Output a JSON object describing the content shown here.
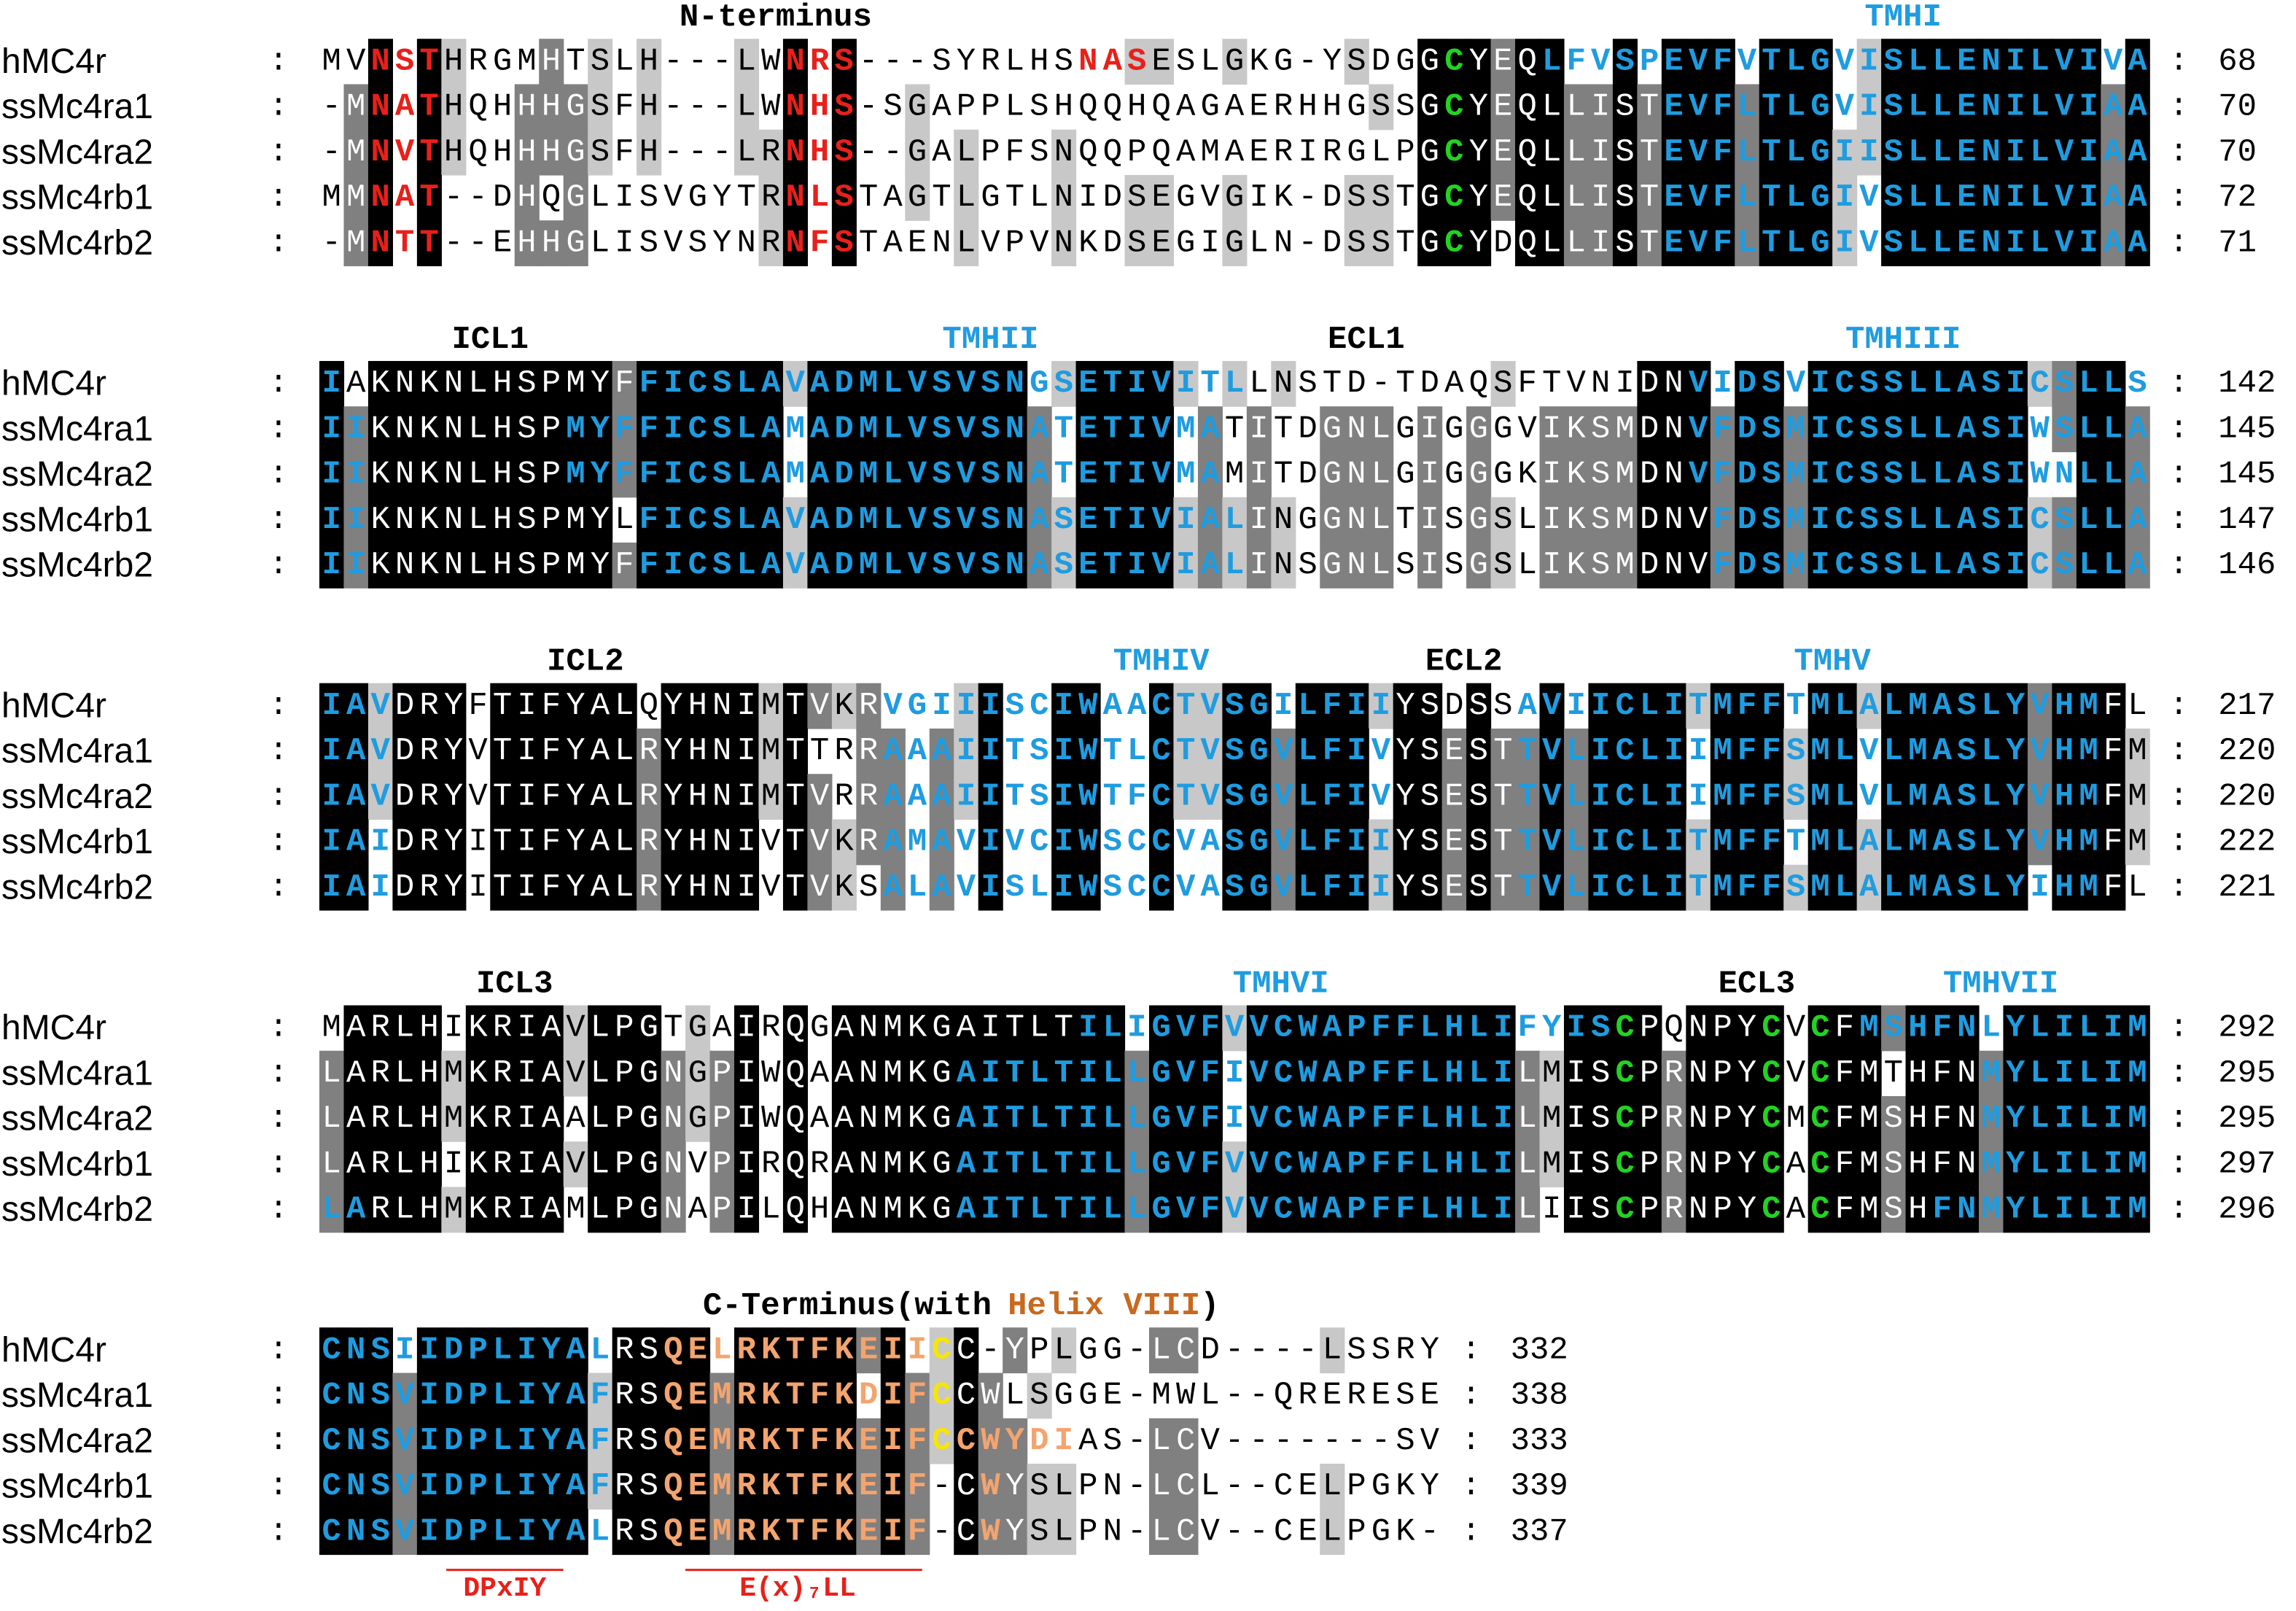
{
  "blocks": [
    {
      "headers": [
        {
          "text": "N-terminus"
        },
        {
          "text": "TMHI",
          "color": "#1f9ce0"
        }
      ],
      "rows": [
        {
          "name": "hMC4r",
          "separator": ":",
          "count": 68,
          "segments": [
            {
              "text": "MV"
            },
            {
              "text": "NST",
              "color": "#e8201a"
            },
            {
              "text": "HRGMHTSLH---LW"
            },
            {
              "text": "NRS",
              "color": "#e8201a"
            },
            {
              "text": "---SYRLHS"
            },
            {
              "text": "NAS",
              "color": "#e8201a"
            },
            {
              "text": "ESLGKG-YSDGG"
            },
            {
              "text": "C",
              "color": "#22d322"
            },
            {
              "text": "YEQ"
            },
            {
              "text": "LFVSPEVFVTLGVISLLENILVIVA",
              "color": "#1f9ce0"
            }
          ]
        },
        {
          "name": "ssMc4ra1",
          "separator": ":",
          "count": 70,
          "segments": [
            {
              "text": "-M"
            },
            {
              "text": "NAT",
              "color": "#e8201a"
            },
            {
              "text": "HQHHHGSFH---LW"
            },
            {
              "text": "NHS",
              "color": "#e8201a"
            },
            {
              "text": "-SGAPPLSHQQHQAGAERHHGSSG"
            },
            {
              "text": "C",
              "color": "#22d322"
            },
            {
              "text": "YEQLLIST"
            },
            {
              "text": "EVFLTLGVISLLENILVIAA",
              "color": "#1f9ce0"
            }
          ]
        },
        {
          "name": "ssMc4ra2",
          "separator": ":",
          "count": 70,
          "segments": [
            {
              "text": "-M"
            },
            {
              "text": "NVT",
              "color": "#e8201a"
            },
            {
              "text": "HQHHHGSFH---LR"
            },
            {
              "text": "NHS",
              "color": "#e8201a"
            },
            {
              "text": "--GALPFSNQQPQAMAERIRGLPG"
            },
            {
              "text": "C",
              "color": "#22d322"
            },
            {
              "text": "YEQLLIST"
            },
            {
              "text": "EVFLTLGIISLLENILVIAA",
              "color": "#1f9ce0"
            }
          ]
        },
        {
          "name": "ssMc4rb1",
          "separator": ":",
          "count": 72,
          "segments": [
            {
              "text": "MM"
            },
            {
              "text": "NAT",
              "color": "#e8201a"
            },
            {
              "text": "--DHQGLISVGYTR"
            },
            {
              "text": "NLS",
              "color": "#e8201a"
            },
            {
              "text": "TAGTLGTLNIDSEGVGIK-DSSTG"
            },
            {
              "text": "C",
              "color": "#22d322"
            },
            {
              "text": "YEQLLIST"
            },
            {
              "text": "EVFLTLGIVSLLENILVIAA",
              "color": "#1f9ce0"
            }
          ]
        },
        {
          "name": "ssMc4rb2",
          "separator": ":",
          "count": 71,
          "segments": [
            {
              "text": "-M"
            },
            {
              "text": "NTT",
              "color": "#e8201a"
            },
            {
              "text": "--EHHGLISVSYNR"
            },
            {
              "text": "NFS",
              "color": "#e8201a"
            },
            {
              "text": "TAENLVPVNKDSEGIGLN-DSSTG"
            },
            {
              "text": "C",
              "color": "#22d322"
            },
            {
              "text": "YDQLLIST"
            },
            {
              "text": "EVFLTLGIVSLLENILVIAA",
              "color": "#1f9ce0"
            }
          ]
        }
      ]
    },
    {
      "headers": [
        {
          "text": "ICL1"
        },
        {
          "text": "TMHII",
          "color": "#1f9ce0"
        },
        {
          "text": "ECL1"
        },
        {
          "text": "TMHIII",
          "color": "#1f9ce0"
        }
      ],
      "rows": [
        {
          "name": "hMC4r",
          "separator": ":",
          "count": 142,
          "segments": [
            {
              "text": "I",
              "color": "#1f9ce0"
            },
            {
              "text": "AKNKNLHSPMYF"
            },
            {
              "text": "FICSLAVADMLVSVSNGSETIVITL",
              "color": "#1f9ce0"
            },
            {
              "text": "LNSTD-TDAQSFTVNIDN"
            },
            {
              "text": "VIDSVICSSLLASICSLLS",
              "color": "#1f9ce0"
            }
          ]
        },
        {
          "name": "ssMc4ra1",
          "separator": ":",
          "count": 145,
          "segments": [
            {
              "text": "II",
              "color": "#1f9ce0"
            },
            {
              "text": "KNKNLHSP"
            },
            {
              "text": "MYFFICSLAMADMLVSVSNATETIVMA",
              "color": "#1f9ce0"
            },
            {
              "text": "TITDGNLGIGGGVIKSMDN"
            },
            {
              "text": "VFDSMICSSLLASIWSLLA",
              "color": "#1f9ce0"
            }
          ]
        },
        {
          "name": "ssMc4ra2",
          "separator": ":",
          "count": 145,
          "segments": [
            {
              "text": "II",
              "color": "#1f9ce0"
            },
            {
              "text": "KNKNLHSP"
            },
            {
              "text": "MYFFICSLAMADMLVSVSNATETIVMA",
              "color": "#1f9ce0"
            },
            {
              "text": "MITDGNLGIGGGKIKSMDN"
            },
            {
              "text": "VFDSMICSSLLASIWNLLA",
              "color": "#1f9ce0"
            }
          ]
        },
        {
          "name": "ssMc4rb1",
          "separator": ":",
          "count": 147,
          "segments": [
            {
              "text": "II",
              "color": "#1f9ce0"
            },
            {
              "text": "KNKNLHSPMYL"
            },
            {
              "text": "FICSLAVADMLVSVSNASETIVIAL",
              "color": "#1f9ce0"
            },
            {
              "text": "INGGNLTISGSLIKSMDNV"
            },
            {
              "text": "FDSMICSSLLASICSLLA",
              "color": "#1f9ce0"
            }
          ]
        },
        {
          "name": "ssMc4rb2",
          "separator": ":",
          "count": 146,
          "segments": [
            {
              "text": "II",
              "color": "#1f9ce0"
            },
            {
              "text": "KNKNLHSPMYF"
            },
            {
              "text": "FICSLAVADMLVSVSNASETIVIAL",
              "color": "#1f9ce0"
            },
            {
              "text": "INSGNLSISGSLIKSMDNV"
            },
            {
              "text": "FDSMICSSLLASICSLLA",
              "color": "#1f9ce0"
            }
          ]
        }
      ]
    },
    {
      "headers": [
        {
          "text": "ICL2"
        },
        {
          "text": "TMHIV",
          "color": "#1f9ce0"
        },
        {
          "text": "ECL2"
        },
        {
          "text": "TMHV",
          "color": "#1f9ce0"
        }
      ],
      "rows": [
        {
          "name": "hMC4r",
          "separator": ":",
          "count": 217,
          "segments": [
            {
              "text": "IAV",
              "color": "#1f9ce0"
            },
            {
              "text": "DRYFTIFYALQYHNIMTVKR"
            },
            {
              "text": "VGIIISCIWAACTVSGILFII",
              "color": "#1f9ce0"
            },
            {
              "text": "YSDSS"
            },
            {
              "text": "AVIICLITMFFTMLALMASLYVHM",
              "color": "#1f9ce0"
            },
            {
              "text": "FL"
            }
          ]
        },
        {
          "name": "ssMc4ra1",
          "separator": ":",
          "count": 220,
          "segments": [
            {
              "text": "IAV",
              "color": "#1f9ce0"
            },
            {
              "text": "DRYVTIFYALRYHNIMTTRR"
            },
            {
              "text": "AAAIITSIWTLCTVSGVLFIV",
              "color": "#1f9ce0"
            },
            {
              "text": "YSEST"
            },
            {
              "text": "TVLICLIIMFFSMLVLMASLYVHM",
              "color": "#1f9ce0"
            },
            {
              "text": "FM"
            }
          ]
        },
        {
          "name": "ssMc4ra2",
          "separator": ":",
          "count": 220,
          "segments": [
            {
              "text": "IAV",
              "color": "#1f9ce0"
            },
            {
              "text": "DRYVTIFYALRYHNIMTVRR"
            },
            {
              "text": "AAAIITSIWTFCTVSGVLFIV",
              "color": "#1f9ce0"
            },
            {
              "text": "YSEST"
            },
            {
              "text": "TVLICLIIMFFSMLVLMASLYVHM",
              "color": "#1f9ce0"
            },
            {
              "text": "FM"
            }
          ]
        },
        {
          "name": "ssMc4rb1",
          "separator": ":",
          "count": 222,
          "segments": [
            {
              "text": "IAI",
              "color": "#1f9ce0"
            },
            {
              "text": "DRYITIFYALRYHNIVTVKR"
            },
            {
              "text": "AMAVIVCIWSCCVASGVLFII",
              "color": "#1f9ce0"
            },
            {
              "text": "YSEST"
            },
            {
              "text": "TVLICLITMFFTMLALMASLYVHM",
              "color": "#1f9ce0"
            },
            {
              "text": "FM"
            }
          ]
        },
        {
          "name": "ssMc4rb2",
          "separator": ":",
          "count": 221,
          "segments": [
            {
              "text": "IAI",
              "color": "#1f9ce0"
            },
            {
              "text": "DRYITIFYALRYHNIVTVKS"
            },
            {
              "text": "ALAVISLIWSCCVASGVLFII",
              "color": "#1f9ce0"
            },
            {
              "text": "YSEST"
            },
            {
              "text": "TVLICLITMFFSMLALMASLYIHM",
              "color": "#1f9ce0"
            },
            {
              "text": "FL"
            }
          ]
        }
      ]
    },
    {
      "headers": [
        {
          "text": "ICL3"
        },
        {
          "text": "TMHVI",
          "color": "#1f9ce0"
        },
        {
          "text": "ECL3"
        },
        {
          "text": "TMHVII",
          "color": "#1f9ce0"
        }
      ],
      "rows": [
        {
          "name": "hMC4r",
          "separator": ":",
          "count": 292,
          "segments": [
            {
              "text": "MARLHIKRIAVLPGTGAIRQGANMKGAITLT"
            },
            {
              "text": "ILIGVFVVCWAPFFLHLIFYIS",
              "color": "#1f9ce0"
            },
            {
              "text": "C",
              "color": "#22d322"
            },
            {
              "text": "PQNPY"
            },
            {
              "text": "C",
              "color": "#22d322"
            },
            {
              "text": "V"
            },
            {
              "text": "C",
              "color": "#22d322"
            },
            {
              "text": "F"
            },
            {
              "text": "MSHFNLYLILIM",
              "color": "#1f9ce0"
            }
          ]
        },
        {
          "name": "ssMc4ra1",
          "separator": ":",
          "count": 295,
          "segments": [
            {
              "text": "LARLHMKRIAVLPGNGPIWQAANMKG"
            },
            {
              "text": "AITLTILLGVFIVCWAPFFLHLI",
              "color": "#1f9ce0"
            },
            {
              "text": "LMIS"
            },
            {
              "text": "C",
              "color": "#22d322"
            },
            {
              "text": "PRNPY"
            },
            {
              "text": "C",
              "color": "#22d322"
            },
            {
              "text": "V"
            },
            {
              "text": "C",
              "color": "#22d322"
            },
            {
              "text": "FMTHFN"
            },
            {
              "text": "MYLILIM",
              "color": "#1f9ce0"
            }
          ]
        },
        {
          "name": "ssMc4ra2",
          "separator": ":",
          "count": 295,
          "segments": [
            {
              "text": "LARLHMKRIAALPGNGPIWQAANMKG"
            },
            {
              "text": "AITLTILLGVFIVCWAPFFLHLI",
              "color": "#1f9ce0"
            },
            {
              "text": "LMIS"
            },
            {
              "text": "C",
              "color": "#22d322"
            },
            {
              "text": "PRNPY"
            },
            {
              "text": "C",
              "color": "#22d322"
            },
            {
              "text": "M"
            },
            {
              "text": "C",
              "color": "#22d322"
            },
            {
              "text": "FMSHFN"
            },
            {
              "text": "MYLILIM",
              "color": "#1f9ce0"
            }
          ]
        },
        {
          "name": "ssMc4rb1",
          "separator": ":",
          "count": 297,
          "segments": [
            {
              "text": "LARLHIKRIAVLPGNVPIRQRANMKG"
            },
            {
              "text": "AITLTILLGVFVVCWAPFFLHLI",
              "color": "#1f9ce0"
            },
            {
              "text": "LMIS"
            },
            {
              "text": "C",
              "color": "#22d322"
            },
            {
              "text": "PRNPY"
            },
            {
              "text": "C",
              "color": "#22d322"
            },
            {
              "text": "A"
            },
            {
              "text": "C",
              "color": "#22d322"
            },
            {
              "text": "FMSHFN"
            },
            {
              "text": "MYLILIM",
              "color": "#1f9ce0"
            }
          ]
        },
        {
          "name": "ssMc4rb2",
          "separator": ":",
          "count": 296,
          "segments": [
            {
              "text": "LA",
              "color": "#1f9ce0"
            },
            {
              "text": "RLHMKRIAMLPGNAPILQHANMKG"
            },
            {
              "text": "AITLTILLGVFVVCWAPFFLHLI",
              "color": "#1f9ce0"
            },
            {
              "text": "LIIS"
            },
            {
              "text": "C",
              "color": "#22d322"
            },
            {
              "text": "PRNPY"
            },
            {
              "text": "C",
              "color": "#22d322"
            },
            {
              "text": "A"
            },
            {
              "text": "C",
              "color": "#22d322"
            },
            {
              "text": "FMSH"
            },
            {
              "text": "FNMYLILIM",
              "color": "#1f9ce0"
            }
          ]
        }
      ]
    },
    {
      "headers": [
        {
          "parts": [
            {
              "text": "C-Terminus(with"
            },
            {
              "text": "Helix VIII",
              "color": "#c8691f"
            },
            {
              "text": ")"
            }
          ]
        }
      ],
      "rows": [
        {
          "name": "hMC4r",
          "separator": ":",
          "count": 332,
          "segments": [
            {
              "text": "CNSIIDPLIYAL",
              "color": "#1f9ce0"
            },
            {
              "text": "RS"
            },
            {
              "text": "QELRKTFKEII",
              "color": "#f4a46e"
            },
            {
              "text": "C",
              "color": "#f7e600"
            },
            {
              "text": "C-YPLGG-LCD----LSSRY"
            }
          ]
        },
        {
          "name": "ssMc4ra1",
          "separator": ":",
          "count": 338,
          "segments": [
            {
              "text": "CNSVIDPLIYAF",
              "color": "#1f9ce0"
            },
            {
              "text": "RS"
            },
            {
              "text": "QEMRKTFKDIF",
              "color": "#f4a46e"
            },
            {
              "text": "C",
              "color": "#f7e600"
            },
            {
              "text": "CWLSGGE-MWL--QRERESE"
            }
          ]
        },
        {
          "name": "ssMc4ra2",
          "separator": ":",
          "count": 333,
          "segments": [
            {
              "text": "CNSVIDPLIYAF",
              "color": "#1f9ce0"
            },
            {
              "text": "RS"
            },
            {
              "text": "QEMRKTFKEIF",
              "color": "#f4a46e"
            },
            {
              "text": "C",
              "color": "#f7e600"
            },
            {
              "text": "CWYDI",
              "color": "#f4a46e"
            },
            {
              "text": "AS-LCV-------SV"
            }
          ]
        },
        {
          "name": "ssMc4rb1",
          "separator": ":",
          "count": 339,
          "segments": [
            {
              "text": "CNSVIDPLIYAF",
              "color": "#1f9ce0"
            },
            {
              "text": "RS"
            },
            {
              "text": "QEMRKTFKEIF",
              "color": "#f4a46e"
            },
            {
              "text": "-C"
            },
            {
              "text": "W",
              "color": "#f4a46e"
            },
            {
              "text": "YSLPN-LCL--CELPGKY"
            }
          ]
        },
        {
          "name": "ssMc4rb2",
          "separator": ":",
          "count": 337,
          "segments": [
            {
              "text": "CNSVIDPLIYAL",
              "color": "#1f9ce0"
            },
            {
              "text": "RS"
            },
            {
              "text": "QEMRKTFKEIF",
              "color": "#f4a46e"
            },
            {
              "text": "-C"
            },
            {
              "text": "W",
              "color": "#f4a46e"
            },
            {
              "text": "YSLPN-LCV--CELPGK-"
            }
          ]
        }
      ]
    }
  ],
  "annotations": [
    {
      "text": "DPxIY"
    },
    {
      "text": "E(x)₇LL"
    }
  ]
}
